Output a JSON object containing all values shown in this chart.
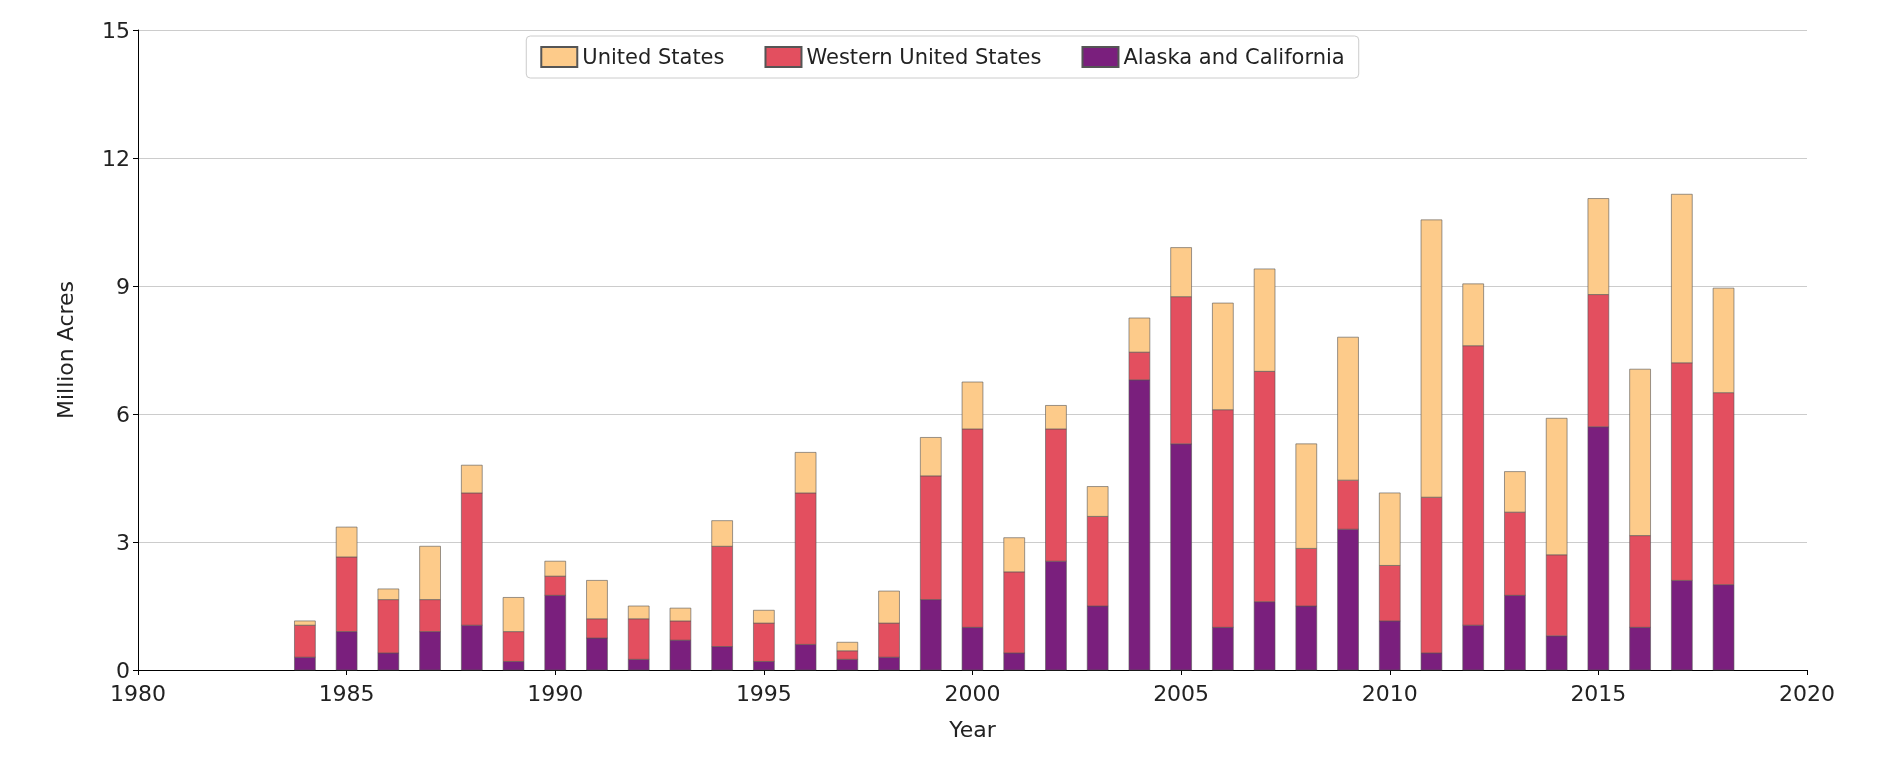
{
  "chart_data": {
    "type": "bar",
    "stacked": true,
    "xlabel": "Year",
    "ylabel": "Million Acres",
    "x": [
      1984,
      1985,
      1986,
      1987,
      1988,
      1989,
      1990,
      1991,
      1992,
      1993,
      1994,
      1995,
      1996,
      1997,
      1998,
      1999,
      2000,
      2001,
      2002,
      2003,
      2004,
      2005,
      2006,
      2007,
      2008,
      2009,
      2010,
      2011,
      2012,
      2013,
      2014,
      2015,
      2016,
      2017,
      2018
    ],
    "series": [
      {
        "name": "Alaska and California",
        "color": "#7a1f7d",
        "values": [
          0.3,
          0.9,
          0.4,
          0.9,
          1.05,
          0.2,
          1.75,
          0.75,
          0.25,
          0.7,
          0.55,
          0.2,
          0.6,
          0.25,
          0.3,
          1.65,
          1.0,
          0.4,
          2.55,
          1.5,
          6.8,
          5.3,
          1.0,
          1.6,
          1.5,
          3.3,
          1.15,
          0.4,
          1.05,
          1.75,
          0.8,
          5.7,
          1.0,
          2.1,
          2.0
        ]
      },
      {
        "name": "Western United States",
        "color": "#e34f5f",
        "values": [
          0.75,
          1.75,
          1.25,
          0.75,
          3.1,
          0.7,
          0.45,
          0.45,
          0.95,
          0.45,
          2.35,
          0.9,
          3.55,
          0.2,
          0.8,
          2.9,
          4.65,
          1.9,
          3.1,
          2.1,
          0.65,
          3.45,
          5.1,
          5.4,
          1.35,
          1.15,
          1.3,
          3.65,
          6.55,
          1.95,
          1.9,
          3.1,
          2.15,
          5.1,
          4.5
        ]
      },
      {
        "name": "United States",
        "color": "#fdcb8a",
        "values": [
          0.1,
          0.7,
          0.25,
          1.25,
          0.65,
          0.8,
          0.35,
          0.9,
          0.3,
          0.3,
          0.6,
          0.3,
          0.95,
          0.2,
          0.75,
          0.9,
          1.1,
          0.8,
          0.55,
          0.7,
          0.8,
          1.15,
          2.5,
          2.4,
          2.45,
          3.35,
          1.7,
          6.5,
          1.45,
          0.95,
          3.2,
          2.25,
          3.9,
          3.95,
          2.45
        ]
      }
    ],
    "xlim": [
      1980,
      2020
    ],
    "xticks": [
      1980,
      1985,
      1990,
      1995,
      2000,
      2005,
      2010,
      2015,
      2020
    ],
    "ylim": [
      0,
      15
    ],
    "yticks": [
      0,
      3,
      6,
      9,
      12,
      15
    ],
    "grid": "y",
    "legend": "top"
  }
}
